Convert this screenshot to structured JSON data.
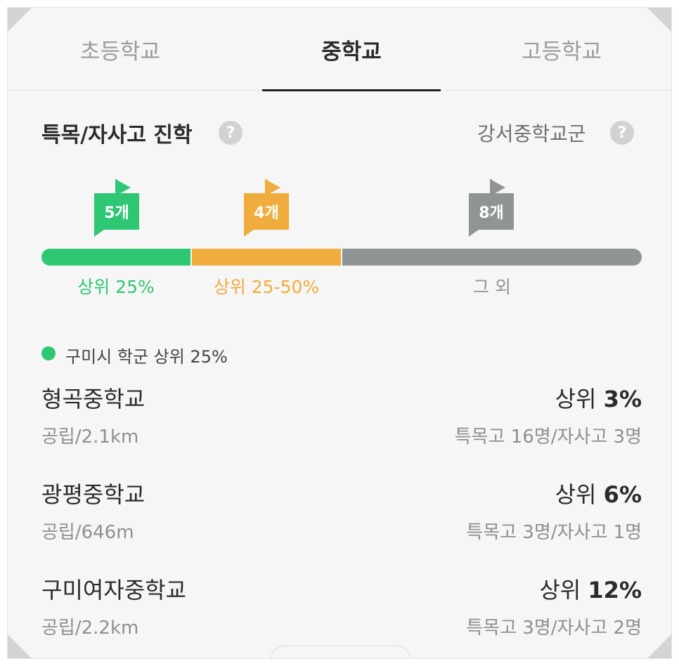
{
  "tabs": [
    {
      "label": "초등학교",
      "active": false
    },
    {
      "label": "중학교",
      "active": true
    },
    {
      "label": "고등학교",
      "active": false
    }
  ],
  "section": {
    "title": "특목/자사고 진학",
    "help_glyph": "?",
    "region": "강서중학교군"
  },
  "flags": [
    {
      "count": "5개",
      "color": "#2ec874"
    },
    {
      "count": "4개",
      "color": "#f0ac3c"
    },
    {
      "count": "8개",
      "color": "#8f9595"
    }
  ],
  "bar_labels": [
    "상위 25%",
    "상위 25-50%",
    "그 외"
  ],
  "legend": {
    "text": "구미시 학군 상위 25%",
    "color": "#2ec874"
  },
  "schools": [
    {
      "name": "형곡중학교",
      "rank_prefix": "상위",
      "rank_value": "3%",
      "meta": "공립/2.1km",
      "counts": "특목고 16명/자사고 3명"
    },
    {
      "name": "광평중학교",
      "rank_prefix": "상위",
      "rank_value": "6%",
      "meta": "공립/646m",
      "counts": "특목고 3명/자사고 1명"
    },
    {
      "name": "구미여자중학교",
      "rank_prefix": "상위",
      "rank_value": "12%",
      "meta": "공립/2.2km",
      "counts": "특목고 3명/자사고 2명"
    }
  ]
}
